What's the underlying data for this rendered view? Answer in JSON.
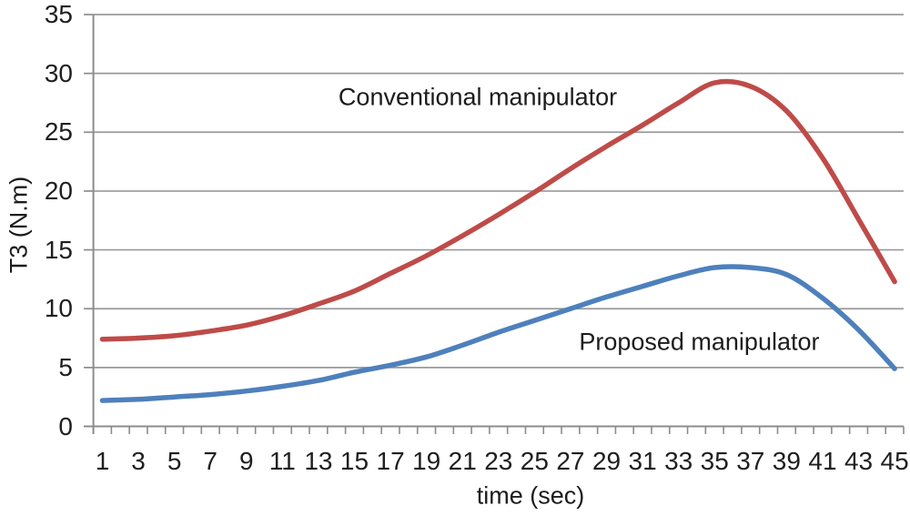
{
  "chart_data": {
    "type": "line",
    "title": "",
    "xlabel": "time (sec)",
    "ylabel": "T3 (N.m)",
    "x": [
      1,
      3,
      5,
      7,
      9,
      11,
      13,
      15,
      17,
      19,
      21,
      23,
      25,
      27,
      29,
      31,
      33,
      35,
      37,
      39,
      41,
      43,
      45
    ],
    "x_tick_labels": [
      "1",
      "3",
      "5",
      "7",
      "9",
      "11",
      "13",
      "15",
      "17",
      "19",
      "21",
      "23",
      "25",
      "27",
      "29",
      "31",
      "33",
      "35",
      "37",
      "39",
      "41",
      "43",
      "45"
    ],
    "x_minor_tick_every": 1,
    "xlim": [
      0,
      46
    ],
    "yticks": [
      0,
      5,
      10,
      15,
      20,
      25,
      30,
      35
    ],
    "ylim": [
      0,
      35
    ],
    "grid": "horizontal",
    "legend_position": "inline-annotations",
    "series": [
      {
        "name": "Conventional manipulator",
        "color": "#BE4B48",
        "values": [
          7.4,
          7.5,
          7.7,
          8.1,
          8.6,
          9.4,
          10.4,
          11.5,
          13.0,
          14.5,
          16.2,
          18.0,
          19.9,
          21.9,
          23.8,
          25.6,
          27.5,
          29.2,
          28.9,
          26.8,
          22.8,
          17.6,
          12.3
        ]
      },
      {
        "name": "Proposed manipulator",
        "color": "#4E80BC",
        "values": [
          2.2,
          2.3,
          2.5,
          2.7,
          3.0,
          3.4,
          3.9,
          4.6,
          5.2,
          5.9,
          6.9,
          8.0,
          9.0,
          10.0,
          11.0,
          11.9,
          12.8,
          13.5,
          13.5,
          12.9,
          10.9,
          8.2,
          4.9
        ]
      }
    ],
    "annotations": [
      {
        "text": "Conventional manipulator",
        "x": 21.85,
        "y": 27.95
      },
      {
        "text": "Proposed manipulator",
        "x": 34.15,
        "y": 7.15
      }
    ],
    "grid_color": "#999999",
    "axis_color": "#8c8c8c",
    "text_color": "#1f1f1f",
    "background_color": "#ffffff"
  }
}
